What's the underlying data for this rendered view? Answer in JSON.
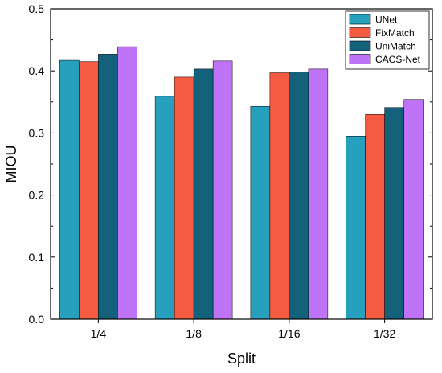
{
  "chart_data": {
    "type": "bar",
    "categories": [
      "1/4",
      "1/8",
      "1/16",
      "1/32"
    ],
    "series": [
      {
        "name": "UNet",
        "color": "#27a0bd",
        "values": [
          0.417,
          0.359,
          0.343,
          0.295
        ]
      },
      {
        "name": "FixMatch",
        "color": "#f45b41",
        "values": [
          0.415,
          0.39,
          0.397,
          0.33
        ]
      },
      {
        "name": "UniMatch",
        "color": "#13617a",
        "values": [
          0.427,
          0.403,
          0.398,
          0.341
        ]
      },
      {
        "name": "CACS-Net",
        "color": "#bf74f7",
        "values": [
          0.439,
          0.416,
          0.403,
          0.354
        ]
      }
    ],
    "xlabel": "Split",
    "ylabel": "MIOU",
    "ylim": [
      0,
      0.5
    ],
    "yticks": [
      "0.0",
      "0.1",
      "0.2",
      "0.3",
      "0.4",
      "0.5"
    ],
    "grid": false,
    "legend_position": "top-right"
  }
}
